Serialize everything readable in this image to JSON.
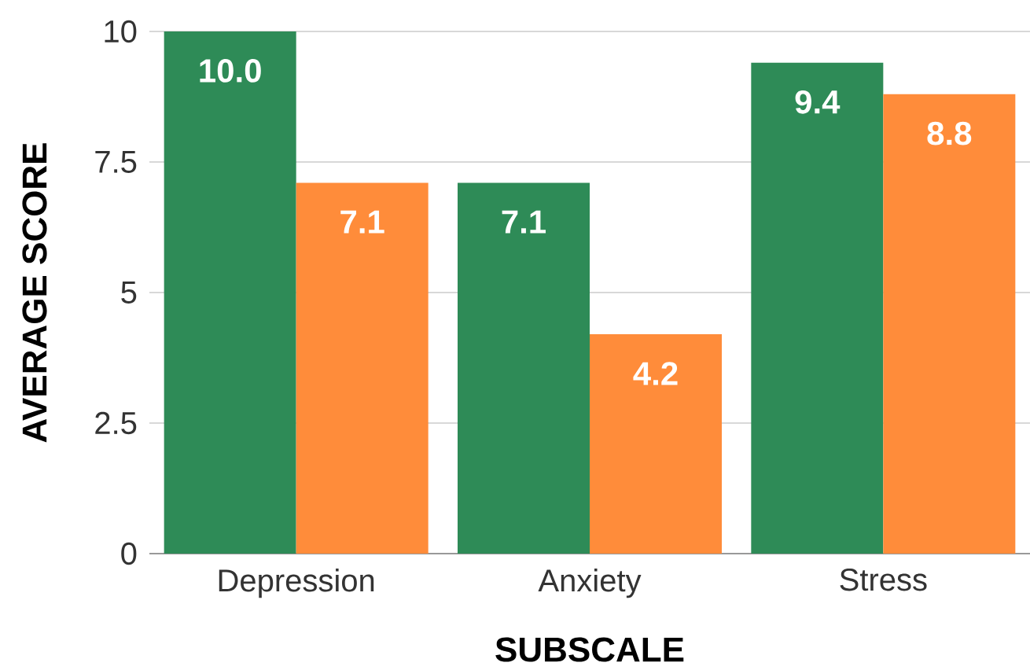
{
  "chart_data": {
    "type": "bar",
    "xlabel": "SUBSCALE",
    "ylabel": "AVERAGE SCORE",
    "categories": [
      "Depression",
      "Anxiety",
      "Stress"
    ],
    "series": [
      {
        "color": "#2e8b57",
        "values": [
          10.0,
          7.1,
          9.4
        ],
        "value_labels": [
          "10.0",
          "7.1",
          "9.4"
        ]
      },
      {
        "color": "#ff8c3a",
        "values": [
          7.1,
          4.2,
          8.8
        ],
        "value_labels": [
          "7.1",
          "4.2",
          "8.8"
        ]
      }
    ],
    "ylim": [
      0,
      10
    ],
    "yticks": [
      0,
      2.5,
      5,
      7.5,
      10
    ],
    "grid": "y"
  }
}
